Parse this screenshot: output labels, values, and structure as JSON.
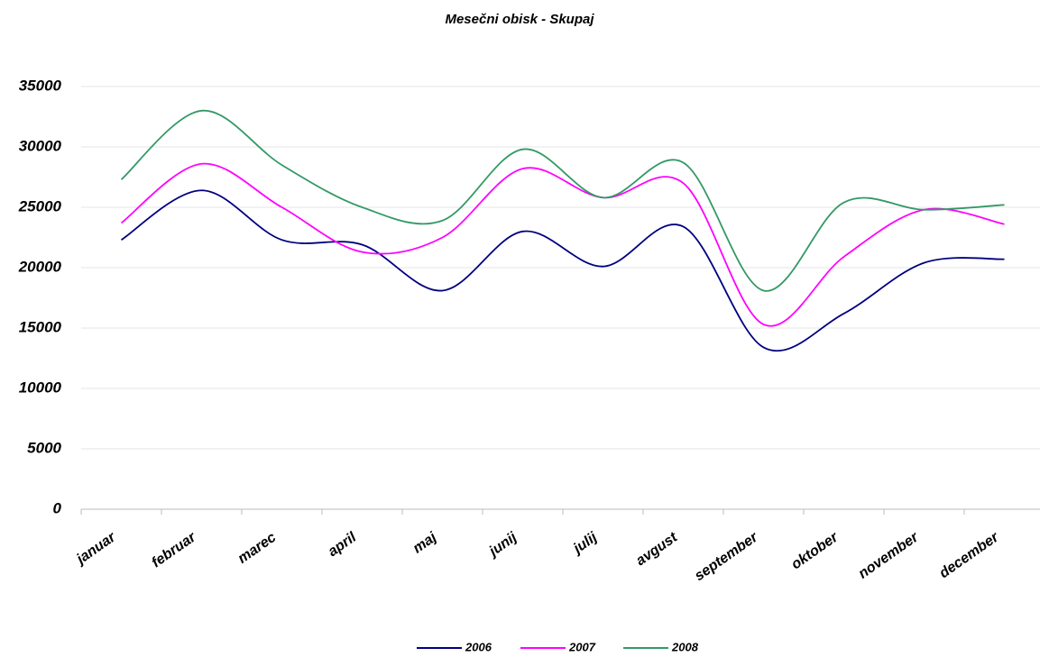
{
  "chart_data": {
    "type": "line",
    "title": "Mesečni obisk - Skupaj",
    "categories": [
      "januar",
      "februar",
      "marec",
      "april",
      "maj",
      "junij",
      "julij",
      "avgust",
      "september",
      "oktober",
      "november",
      "december"
    ],
    "series": [
      {
        "name": "2006",
        "color": "#000080",
        "values": [
          22300,
          26400,
          22300,
          21900,
          18100,
          23000,
          20100,
          23400,
          13400,
          16200,
          20400,
          20700
        ]
      },
      {
        "name": "2007",
        "color": "#ff00ff",
        "values": [
          23700,
          28600,
          25000,
          21300,
          22500,
          28200,
          25800,
          27000,
          15300,
          20900,
          24800,
          23600
        ]
      },
      {
        "name": "2008",
        "color": "#339966",
        "values": [
          27300,
          33000,
          28500,
          25000,
          23900,
          29800,
          25800,
          28700,
          18100,
          25400,
          24800,
          25200
        ]
      }
    ],
    "ylim": [
      0,
      35000
    ],
    "yticks": [
      0,
      5000,
      10000,
      15000,
      20000,
      25000,
      30000,
      35000
    ],
    "grid": true,
    "legend": "bottom"
  }
}
